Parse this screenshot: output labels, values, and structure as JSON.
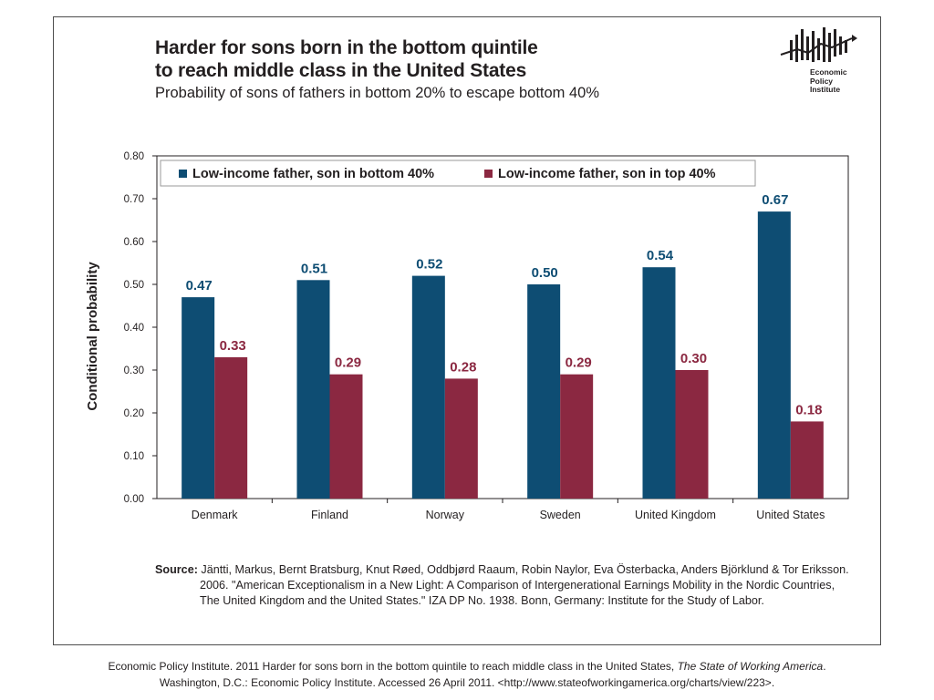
{
  "header": {
    "title_line1": "Harder for sons born in the bottom quintile",
    "title_line2": "to reach middle class in the United States",
    "subtitle": "Probability of sons of fathers in bottom 20% to escape bottom 40%"
  },
  "logo": {
    "line1": "Economic",
    "line2": "Policy",
    "line3": "Institute",
    "icon": "epi-bar-logo-icon"
  },
  "chart_data": {
    "type": "bar",
    "title": "",
    "xlabel": "",
    "ylabel": "Conditional probability",
    "ylim": [
      0,
      0.8
    ],
    "yticks": [
      "0.00",
      "0.10",
      "0.20",
      "0.30",
      "0.40",
      "0.50",
      "0.60",
      "0.70",
      "0.80"
    ],
    "categories": [
      "Denmark",
      "Finland",
      "Norway",
      "Sweden",
      "United Kingdom",
      "United States"
    ],
    "series": [
      {
        "name": "Low-income father, son in bottom 40%",
        "color": "#0e4d73",
        "values": [
          0.47,
          0.51,
          0.52,
          0.5,
          0.54,
          0.67
        ],
        "labels": [
          "0.47",
          "0.51",
          "0.52",
          "0.50",
          "0.54",
          "0.67"
        ]
      },
      {
        "name": "Low-income father, son in top 40%",
        "color": "#8b2841",
        "values": [
          0.33,
          0.29,
          0.28,
          0.29,
          0.3,
          0.18
        ],
        "labels": [
          "0.33",
          "0.29",
          "0.28",
          "0.29",
          "0.30",
          "0.18"
        ]
      }
    ],
    "legend_position": "top",
    "grid": false
  },
  "source": {
    "label": "Source:",
    "line1": "Jäntti, Markus, Bernt Bratsburg, Knut Røed, Oddbjørd Raaum, Robin Naylor, Eva Österbacka, Anders Björklund & Tor Eriksson.",
    "line2": "2006. \"American Exceptionalism in a New Light: A Comparison of Intergenerational Earnings Mobility in the Nordic Countries,",
    "line3": "The United Kingdom and the United States.\" IZA DP No. 1938. Bonn, Germany: Institute for the Study of Labor."
  },
  "citation": {
    "part1": "Economic Policy Institute. 2011 Harder for sons born in the bottom quintile to reach middle class in the United States, ",
    "italic": "The State of Working America",
    "part2": ".",
    "line2": "Washington, D.C.: Economic Policy Institute.  Accessed 26 April 2011.  <http://www.stateofworkingamerica.org/charts/view/223>."
  }
}
